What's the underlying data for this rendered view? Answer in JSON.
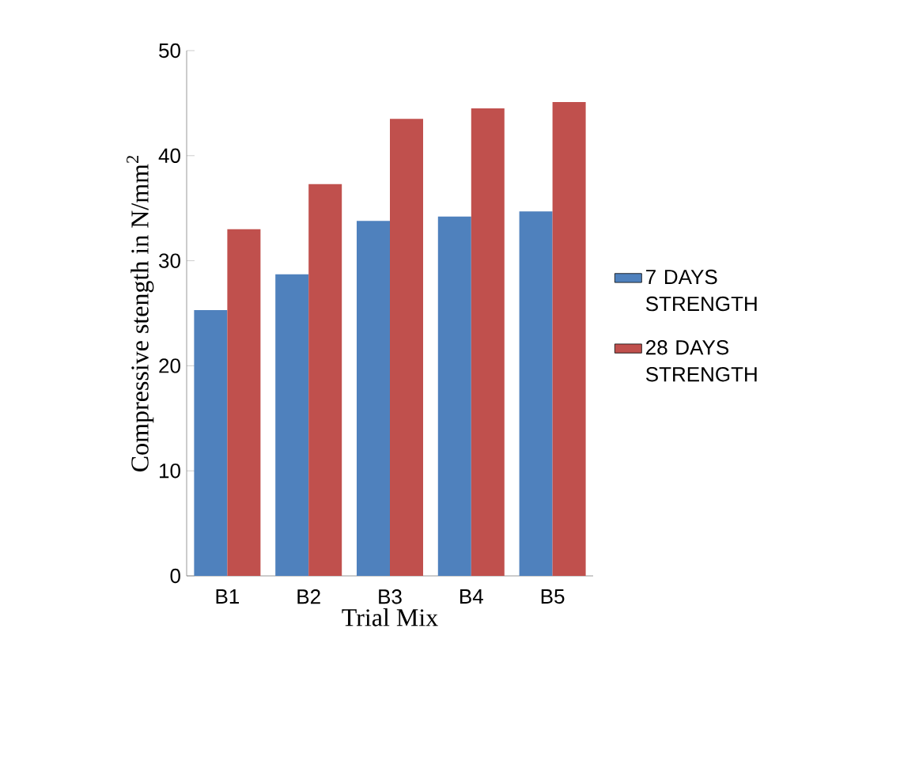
{
  "chart_data": {
    "type": "bar",
    "xlabel": "Trial Mix",
    "ylabel": "Compressive stength in N/mm$^{2}$",
    "categories": [
      "B1",
      "B2",
      "B3",
      "B4",
      "B5"
    ],
    "series": [
      {
        "name": "7 DAYS STRENGTH",
        "color": "#4f81bd",
        "values": [
          25.3,
          28.7,
          33.8,
          34.2,
          34.7
        ]
      },
      {
        "name": "28 DAYS STRENGTH",
        "color": "#c0504d",
        "values": [
          33.0,
          37.3,
          43.5,
          44.5,
          45.1
        ]
      }
    ],
    "ylim": [
      0,
      50
    ],
    "yticks": [
      0,
      10,
      20,
      30,
      40,
      50
    ],
    "legend": "right"
  }
}
